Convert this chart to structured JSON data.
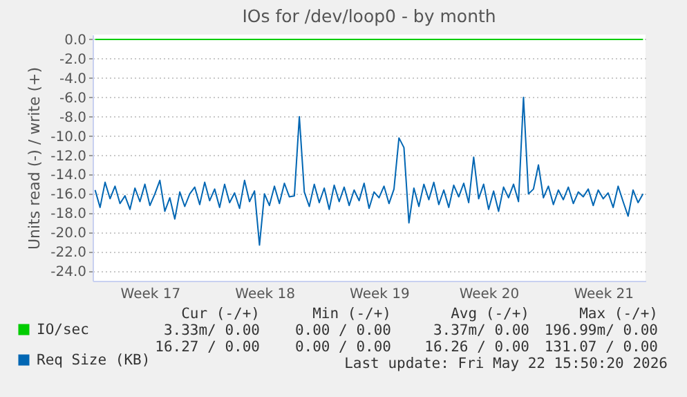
{
  "chart_data": {
    "type": "line",
    "title": "IOs for /dev/loop0 - by month",
    "ylabel": "Units read (-) / write (+)",
    "categories": [
      null,
      null,
      null,
      null,
      null,
      null,
      null,
      null,
      null,
      null,
      null,
      "Week 17",
      null,
      null,
      null,
      null,
      null,
      null,
      null,
      null,
      null,
      null,
      null,
      null,
      null,
      null,
      null,
      null,
      null,
      null,
      null,
      null,
      null,
      null,
      "Week 18",
      null,
      null,
      null,
      null,
      null,
      null,
      null,
      null,
      null,
      null,
      null,
      null,
      null,
      null,
      null,
      null,
      null,
      null,
      null,
      null,
      null,
      null,
      "Week 19",
      null,
      null,
      null,
      null,
      null,
      null,
      null,
      null,
      null,
      null,
      null,
      null,
      null,
      null,
      null,
      null,
      null,
      null,
      null,
      null,
      null,
      "Week 20",
      null,
      null,
      null,
      null,
      null,
      null,
      null,
      null,
      null,
      null,
      null,
      null,
      null,
      null,
      null,
      null,
      null,
      null,
      null,
      null,
      null,
      null,
      "Week 21",
      null,
      null,
      null,
      null,
      null,
      null,
      null,
      null
    ],
    "ylim": [
      -25,
      0.5
    ],
    "yticks": [
      {
        "value": 0,
        "label": "0.0"
      },
      {
        "value": -2,
        "label": "-2.0"
      },
      {
        "value": -4,
        "label": "-4.0"
      },
      {
        "value": -6,
        "label": "-6.0"
      },
      {
        "value": -8,
        "label": "-8.0"
      },
      {
        "value": -10,
        "label": "-10.0"
      },
      {
        "value": -12,
        "label": "-12.0"
      },
      {
        "value": -14,
        "label": "-14.0"
      },
      {
        "value": -16,
        "label": "-16.0"
      },
      {
        "value": -18,
        "label": "-18.0"
      },
      {
        "value": -20,
        "label": "-20.0"
      },
      {
        "value": -22,
        "label": "-22.0"
      },
      {
        "value": -24,
        "label": "-24.0"
      }
    ],
    "grid": "y",
    "legend": "bottom left",
    "series": [
      {
        "name": "IO/sec",
        "color": "#00cc00",
        "values": [
          0,
          0,
          0,
          0,
          0,
          0,
          0,
          0,
          0,
          0,
          0,
          0,
          0,
          0,
          0,
          0,
          0,
          0,
          0,
          0,
          0,
          0,
          0,
          0,
          0,
          0,
          0,
          0,
          0,
          0,
          0,
          0,
          0,
          0,
          0,
          0,
          0,
          0,
          0,
          0,
          0,
          0,
          0,
          0,
          0,
          0,
          0,
          0,
          0,
          0,
          0,
          0,
          0,
          0,
          0,
          0,
          0,
          0,
          0,
          0,
          0,
          0,
          0,
          0,
          0,
          0,
          0,
          0,
          0,
          0,
          0,
          0,
          0,
          0,
          0,
          0,
          0,
          0,
          0,
          0,
          0,
          0,
          0,
          0,
          0,
          0,
          0,
          0,
          0,
          0,
          0,
          0,
          0,
          0,
          0,
          0,
          0,
          0,
          0,
          0,
          0,
          0,
          0,
          0,
          0,
          0,
          0,
          0,
          0,
          0,
          0
        ]
      },
      {
        "name": "Req Size (KB)",
        "color": "#0066b3",
        "values": [
          -15.6,
          -17.4,
          -14.8,
          -16.5,
          -15.2,
          -17.0,
          -16.2,
          -17.6,
          -15.4,
          -16.8,
          -15.0,
          -17.2,
          -16.0,
          -14.6,
          -17.8,
          -16.4,
          -18.6,
          -15.8,
          -17.3,
          -16.0,
          -15.3,
          -17.1,
          -14.8,
          -16.7,
          -15.5,
          -17.4,
          -15.0,
          -16.9,
          -15.9,
          -17.5,
          -14.6,
          -16.8,
          -15.7,
          -21.3,
          -16.0,
          -17.2,
          -15.2,
          -17.0,
          -14.9,
          -16.3,
          -16.2,
          -8.0,
          -15.8,
          -17.3,
          -15.0,
          -16.9,
          -15.4,
          -17.6,
          -15.1,
          -16.8,
          -15.3,
          -17.2,
          -15.6,
          -16.7,
          -14.9,
          -17.5,
          -15.8,
          -16.4,
          -15.2,
          -17.0,
          -15.5,
          -10.2,
          -11.2,
          -19.0,
          -15.4,
          -17.3,
          -15.0,
          -16.6,
          -14.8,
          -17.1,
          -15.6,
          -17.4,
          -15.1,
          -16.3,
          -14.9,
          -16.9,
          -12.2,
          -16.5,
          -15.0,
          -17.6,
          -15.7,
          -17.8,
          -15.3,
          -16.4,
          -15.0,
          -16.8,
          -6.0,
          -16.0,
          -15.5,
          -13.0,
          -16.4,
          -15.2,
          -17.1,
          -15.6,
          -16.6,
          -15.3,
          -17.0,
          -15.8,
          -16.3,
          -15.5,
          -17.2,
          -15.6,
          -16.5,
          -15.9,
          -17.4,
          -15.2,
          -16.8,
          -18.3,
          -15.6,
          -16.9,
          -16.0
        ]
      }
    ],
    "annotations": [
      "Cur (-/+)",
      "Min (-/+)",
      "Avg (-/+)",
      "Max (-/+)",
      "3.33m/ 0.00",
      "0.00 / 0.00",
      "3.37m/ 0.00",
      "196.99m/ 0.00",
      "16.27 / 0.00",
      "0.00 / 0.00",
      "16.26 / 0.00",
      "131.07 / 0.00",
      "Last update: Fri May 22 15:50:20 2026"
    ]
  }
}
